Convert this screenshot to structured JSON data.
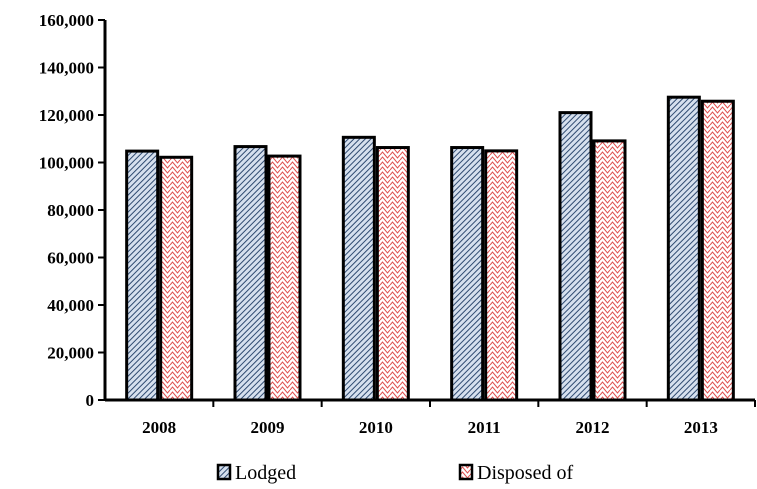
{
  "chart_data": {
    "type": "bar",
    "categories": [
      "2008",
      "2009",
      "2010",
      "2011",
      "2012",
      "2013"
    ],
    "series": [
      {
        "name": "Lodged",
        "values": [
          104800,
          106700,
          110600,
          106300,
          121000,
          127500
        ],
        "color": "#4a6e9a"
      },
      {
        "name": "Disposed of",
        "values": [
          102200,
          102700,
          106300,
          104900,
          109100,
          125800
        ],
        "color": "#e05050"
      }
    ],
    "y_ticks": [
      "0",
      "20,000",
      "40,000",
      "60,000",
      "80,000",
      "100,000",
      "120,000",
      "140,000",
      "160,000"
    ],
    "ylim": [
      0,
      160000
    ],
    "y_step": 20000,
    "grid": false,
    "legend_position": "bottom",
    "title": "",
    "xlabel": "",
    "ylabel": ""
  }
}
